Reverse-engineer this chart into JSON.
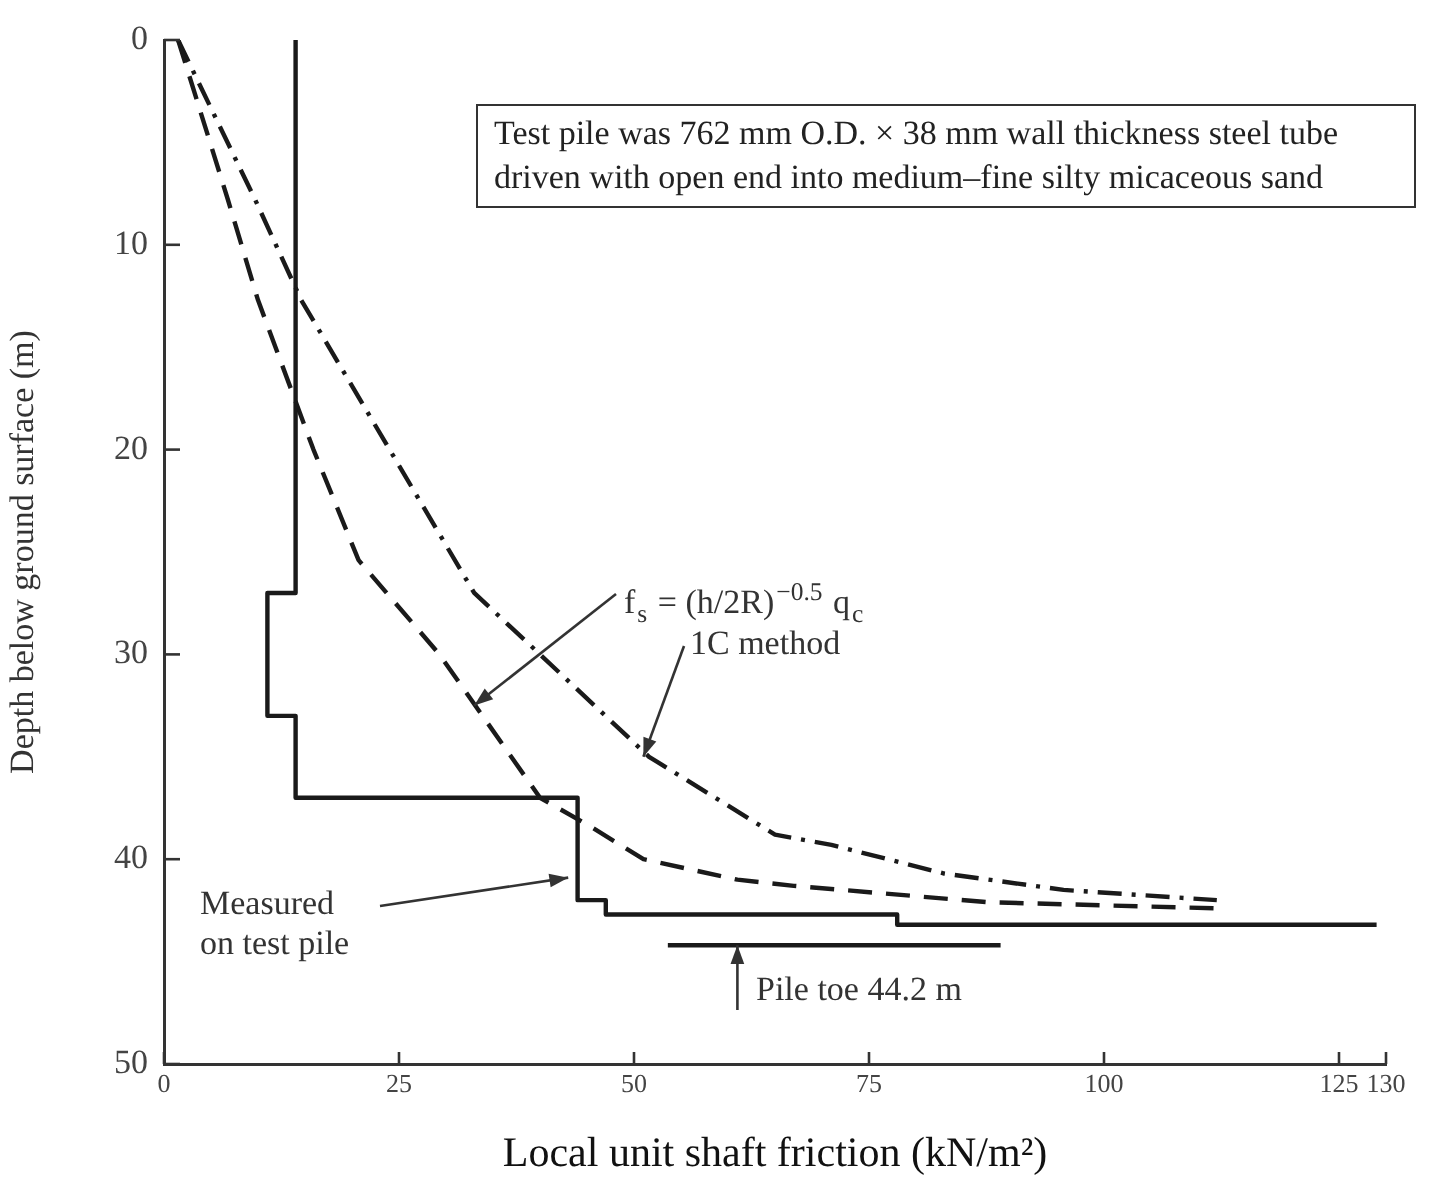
{
  "chart_data": {
    "type": "line",
    "xlabel": "Local unit shaft friction (kN/m²)",
    "ylabel": "Depth below ground surface (m)",
    "xlim": [
      0,
      130
    ],
    "xticks": [
      0,
      25,
      50,
      75,
      100,
      125,
      130
    ],
    "ylim": [
      50,
      0
    ],
    "yticks": [
      0,
      10,
      20,
      30,
      40,
      50
    ],
    "grid": false,
    "legend": false,
    "marker": "none",
    "series": [
      {
        "color": "#1a1a1a",
        "line_style": "solid",
        "x": [
          14,
          14,
          11,
          11,
          14,
          14,
          44,
          44,
          47,
          47,
          78,
          78,
          129
        ],
        "values": [
          0,
          27,
          27,
          33,
          33,
          37,
          37,
          42,
          42,
          42.7,
          42.7,
          43.2,
          43.2
        ]
      },
      {
        "color": "#1a1a1a",
        "line_style": "dashed",
        "x": [
          1.5,
          6.8,
          10,
          15.9,
          20.7,
          29.3,
          40,
          45,
          51,
          61,
          67,
          87.6,
          112
        ],
        "values": [
          0,
          7.8,
          12.7,
          20,
          25.4,
          30,
          37,
          38.3,
          40,
          41,
          41.3,
          42.1,
          42.4
        ]
      },
      {
        "color": "#1a1a1a",
        "line_style": "dashdot",
        "x": [
          1.5,
          9.7,
          14.6,
          24,
          33,
          40,
          51.6,
          65,
          71,
          83,
          95.7,
          112
        ],
        "values": [
          0,
          7.8,
          12.7,
          20,
          27,
          30,
          35,
          38.8,
          39.3,
          40.7,
          41.5,
          42
        ]
      },
      {
        "color": "#1a1a1a",
        "line_style": "solid",
        "x": [
          53.6,
          89
        ],
        "values": [
          44.2,
          44.2
        ]
      }
    ],
    "annotations": [
      "Test pile was 762 mm O.D. × 38 mm wall thickness steel tube driven with open end into medium–fine silty micaceous sand",
      {
        "text": "f$_{s}$ = (h/2R)$^{−0.5}$ q$_{c}$",
        "x": 33,
        "y": 32.5
      },
      {
        "text": "1C method",
        "x": 51,
        "y": 35
      },
      {
        "text": "Measured on test pile",
        "x": 43,
        "y": 40.9
      },
      {
        "text": "Pile toe 44.2 m",
        "x": 61,
        "y": 44.2
      }
    ]
  }
}
